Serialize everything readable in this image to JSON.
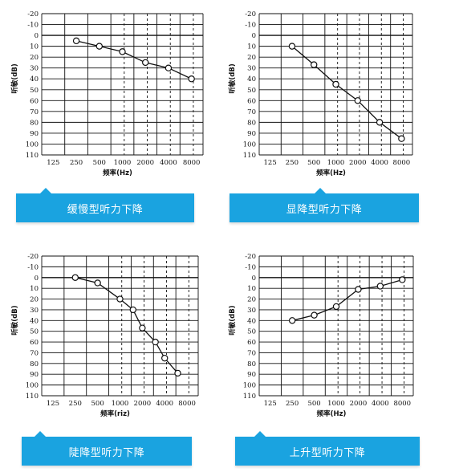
{
  "theme": {
    "banner_color": "#1aa3e0",
    "line_color": "#111111"
  },
  "chart_data": [
    {
      "type": "line",
      "banner": "缓慢型听力下降",
      "ylabel": "听敏(dB)",
      "xlabel": "频率(Hz)",
      "x_ticks": [
        "125",
        "250",
        "500",
        "1000",
        "2000",
        "4000",
        "8000"
      ],
      "y_ticks": [
        "-20",
        "-10",
        "0",
        "10",
        "20",
        "30",
        "40",
        "50",
        "60",
        "70",
        "80",
        "90",
        "100",
        "110"
      ],
      "ylim": [
        -20,
        110
      ],
      "x": [
        "250",
        "500",
        "1000",
        "2000",
        "4000",
        "8000"
      ],
      "values": [
        5,
        10,
        15,
        25,
        30,
        40
      ]
    },
    {
      "type": "line",
      "banner": "显降型听力下降",
      "ylabel": "听敏(dB)",
      "xlabel": "频率(Hz)",
      "x_ticks": [
        "125",
        "250",
        "500",
        "1000",
        "2000",
        "4000",
        "8000"
      ],
      "y_ticks": [
        "-20",
        "-10",
        "0",
        "10",
        "20",
        "30",
        "40",
        "50",
        "60",
        "70",
        "80",
        "90",
        "100",
        "110"
      ],
      "ylim": [
        -20,
        110
      ],
      "x": [
        "250",
        "500",
        "1000",
        "2000",
        "4000",
        "8000"
      ],
      "values": [
        10,
        27,
        45,
        60,
        80,
        95
      ]
    },
    {
      "type": "line",
      "banner": "陡降型听力下降",
      "ylabel": "听敏(dB)",
      "xlabel": "频率(riz)",
      "x_ticks": [
        "125",
        "250",
        "500",
        "1000",
        "2000",
        "4000",
        "8000"
      ],
      "y_ticks": [
        "-20",
        "-10",
        "0",
        "10",
        "20",
        "30",
        "40",
        "50",
        "60",
        "70",
        "80",
        "90",
        "100",
        "110"
      ],
      "ylim": [
        -20,
        110
      ],
      "x": [
        "250",
        "500",
        "1000",
        "1500",
        "2000",
        "3000",
        "4000",
        "6000"
      ],
      "values": [
        0,
        5,
        20,
        30,
        47,
        60,
        75,
        89
      ]
    },
    {
      "type": "line",
      "banner": "上升型听力下降",
      "ylabel": "听敏(dB)",
      "xlabel": "频率(Hz)",
      "x_ticks": [
        "125",
        "250",
        "500",
        "1000",
        "2000",
        "4000",
        "8000"
      ],
      "y_ticks": [
        "-20",
        "-10",
        "0",
        "10",
        "20",
        "30",
        "40",
        "50",
        "60",
        "70",
        "80",
        "90",
        "100",
        "110"
      ],
      "ylim": [
        -20,
        110
      ],
      "x": [
        "250",
        "500",
        "1000",
        "2000",
        "4000",
        "8000"
      ],
      "values": [
        40,
        35,
        27,
        11,
        8,
        2
      ]
    }
  ]
}
